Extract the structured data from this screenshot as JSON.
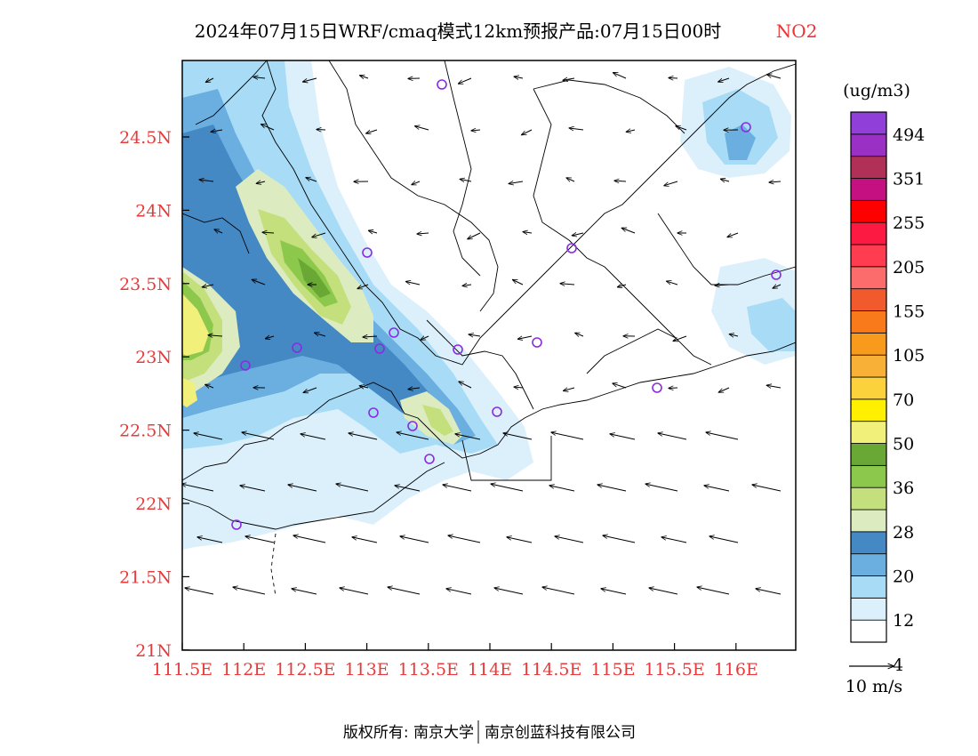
{
  "header": {
    "title": "2024年07月15日WRF/cmaq模式12km预报产品:07月15日00时",
    "species": "NO2",
    "species_color": "#ee3333"
  },
  "axes": {
    "tick_color": "#e83a3a",
    "x_ticks": [
      "111.5E",
      "112E",
      "112.5E",
      "113E",
      "113.5E",
      "114E",
      "114.5E",
      "115E",
      "115.5E",
      "116E"
    ],
    "y_ticks": [
      "24.5N",
      "24N",
      "23.5N",
      "23N",
      "22.5N",
      "22N",
      "21.5N",
      "21N"
    ]
  },
  "legend": {
    "unit": "(ug/m3)",
    "labels": [
      "494",
      "351",
      "255",
      "205",
      "155",
      "105",
      "70",
      "50",
      "36",
      "28",
      "20",
      "12",
      "4"
    ],
    "colors": [
      "#ffffff",
      "#dcf0fc",
      "#a8dcf6",
      "#6aafe0",
      "#4488c4",
      "#dcecc0",
      "#c4e07c",
      "#8cc84c",
      "#6aa836",
      "#f0f07a",
      "#fff000",
      "#fcd23c",
      "#f8b036",
      "#f89a1c",
      "#f87a1a",
      "#f05a2c",
      "#fc6c6c",
      "#ff3c50",
      "#fc1a42",
      "#ff0000",
      "#c41080",
      "#b03058",
      "#9a30c4",
      "#9040d8"
    ]
  },
  "wind_key": {
    "label": "10 m/s"
  },
  "footer": {
    "copyright": "版权所有: 南京大学",
    "partner": "南京创蓝科技有限公司"
  }
}
